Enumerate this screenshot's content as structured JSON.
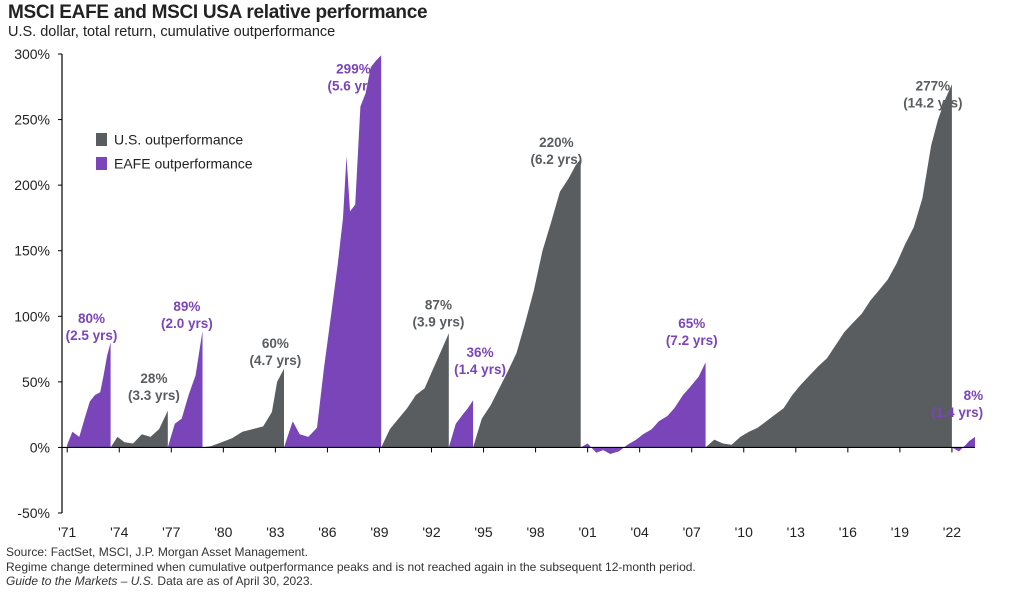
{
  "title": "MSCI EAFE and MSCI USA relative performance",
  "subtitle": "U.S. dollar, total return, cumulative outperformance",
  "colors": {
    "us": "#595d60",
    "eafe": "#7a45b8",
    "axis": "#000000"
  },
  "chart_data": {
    "type": "area",
    "ylim": [
      -50,
      300
    ],
    "yticks": [
      -50,
      0,
      50,
      100,
      150,
      200,
      250,
      300
    ],
    "ytick_labels": [
      "-50%",
      "0%",
      "50%",
      "100%",
      "150%",
      "200%",
      "250%",
      "300%"
    ],
    "xlim": [
      1970.7,
      2023.33
    ],
    "xticks": [
      1971,
      1974,
      1977,
      1980,
      1983,
      1986,
      1989,
      1992,
      1995,
      1998,
      2001,
      2004,
      2007,
      2010,
      2013,
      2016,
      2019,
      2022
    ],
    "xtick_labels": [
      "'71",
      "'74",
      "'77",
      "'80",
      "'83",
      "'86",
      "'89",
      "'92",
      "'95",
      "'98",
      "'01",
      "'04",
      "'07",
      "'10",
      "'13",
      "'16",
      "'19",
      "'22"
    ],
    "legend": {
      "placement": "top-left",
      "items": [
        {
          "label": "U.S. outperformance",
          "series": "us"
        },
        {
          "label": "EAFE  outperformance",
          "series": "eafe"
        }
      ]
    },
    "series": [
      {
        "name": "EAFE  outperformance",
        "color": "eafe",
        "x": [
          1971.0,
          1971.3,
          1971.7,
          1972.0,
          1972.3,
          1972.6,
          1972.9,
          1973.1,
          1973.3,
          1973.5
        ],
        "y": [
          2,
          12,
          8,
          22,
          35,
          40,
          42,
          55,
          70,
          80
        ]
      },
      {
        "name": "U.S. outperformance",
        "color": "us",
        "x": [
          1973.5,
          1973.9,
          1974.3,
          1974.8,
          1975.3,
          1975.8,
          1976.3,
          1976.8
        ],
        "y": [
          0,
          8,
          4,
          3,
          10,
          8,
          14,
          28
        ]
      },
      {
        "name": "EAFE  outperformance",
        "color": "eafe",
        "x": [
          1976.8,
          1977.2,
          1977.6,
          1978.0,
          1978.4,
          1978.8
        ],
        "y": [
          0,
          18,
          22,
          40,
          55,
          89
        ]
      },
      {
        "name": "U.S. outperformance",
        "color": "us",
        "x": [
          1978.8,
          1979.3,
          1979.9,
          1980.5,
          1981.1,
          1981.7,
          1982.3,
          1982.8,
          1983.1,
          1983.5
        ],
        "y": [
          0,
          1,
          4,
          7,
          12,
          14,
          16,
          27,
          50,
          60
        ]
      },
      {
        "name": "EAFE  outperformance",
        "color": "eafe",
        "x": [
          1983.5,
          1984.0,
          1984.4,
          1984.9,
          1985.4,
          1985.8,
          1986.2,
          1986.6,
          1986.9,
          1987.1,
          1987.3,
          1987.6,
          1987.9,
          1988.2,
          1988.5,
          1988.8,
          1989.1
        ],
        "y": [
          0,
          20,
          10,
          8,
          15,
          60,
          100,
          140,
          175,
          222,
          180,
          185,
          260,
          270,
          290,
          295,
          299
        ]
      },
      {
        "name": "U.S. outperformance",
        "color": "us",
        "x": [
          1989.1,
          1989.6,
          1990.1,
          1990.6,
          1991.1,
          1991.6,
          1992.1,
          1992.6,
          1993.0
        ],
        "y": [
          0,
          14,
          22,
          30,
          40,
          45,
          60,
          75,
          87
        ]
      },
      {
        "name": "EAFE  outperformance",
        "color": "eafe",
        "x": [
          1993.0,
          1993.4,
          1993.8,
          1994.1,
          1994.4
        ],
        "y": [
          0,
          18,
          25,
          30,
          36
        ]
      },
      {
        "name": "U.S. outperformance",
        "color": "us",
        "x": [
          1994.4,
          1994.9,
          1995.4,
          1995.9,
          1996.4,
          1996.9,
          1997.4,
          1997.9,
          1998.4,
          1998.9,
          1999.4,
          1999.9,
          2000.3,
          2000.6
        ],
        "y": [
          0,
          22,
          32,
          45,
          58,
          72,
          95,
          120,
          150,
          172,
          195,
          205,
          215,
          220
        ]
      },
      {
        "name": "EAFE  outperformance",
        "color": "eafe",
        "x": [
          2000.6,
          2001.0,
          2001.5,
          2001.9,
          2002.3,
          2002.8,
          2003.3,
          2003.8,
          2004.2,
          2004.7,
          2005.1,
          2005.6,
          2006.0,
          2006.5,
          2006.9,
          2007.4,
          2007.8
        ],
        "y": [
          0,
          3,
          -4,
          -2,
          -5,
          -3,
          2,
          6,
          10,
          14,
          20,
          24,
          30,
          40,
          46,
          54,
          65
        ]
      },
      {
        "name": "U.S. outperformance",
        "color": "us",
        "x": [
          2007.8,
          2008.3,
          2008.8,
          2009.3,
          2009.8,
          2010.3,
          2010.8,
          2011.3,
          2011.8,
          2012.3,
          2012.8,
          2013.3,
          2013.8,
          2014.3,
          2014.8,
          2015.3,
          2015.8,
          2016.3,
          2016.8,
          2017.3,
          2017.8,
          2018.3,
          2018.8,
          2019.3,
          2019.8,
          2020.3,
          2020.8,
          2021.2,
          2021.6,
          2022.0
        ],
        "y": [
          0,
          6,
          3,
          2,
          8,
          12,
          15,
          20,
          25,
          30,
          40,
          48,
          55,
          62,
          68,
          78,
          88,
          95,
          102,
          112,
          120,
          128,
          140,
          155,
          168,
          190,
          230,
          250,
          265,
          277
        ]
      },
      {
        "name": "EAFE  outperformance",
        "color": "eafe",
        "x": [
          2022.0,
          2022.4,
          2022.8,
          2023.0,
          2023.33
        ],
        "y": [
          0,
          -3,
          2,
          5,
          8
        ]
      }
    ],
    "annotations": [
      {
        "text": "80%",
        "text2": "(2.5 yrs)",
        "x": 1972.4,
        "y": 95,
        "color": "eafe"
      },
      {
        "text": "28%",
        "text2": "(3.3 yrs)",
        "x": 1976.0,
        "y": 49,
        "color": "us"
      },
      {
        "text": "89%",
        "text2": "(2.0 yrs)",
        "x": 1977.9,
        "y": 104,
        "color": "eafe"
      },
      {
        "text": "60%",
        "text2": "(4.7 yrs)",
        "x": 1983.0,
        "y": 76,
        "color": "us"
      },
      {
        "text": "299%",
        "text2": "(5.6 yrs)",
        "x": 1987.5,
        "y": 285,
        "color": "eafe"
      },
      {
        "text": "87%",
        "text2": "(3.9 yrs)",
        "x": 1992.4,
        "y": 105,
        "color": "us"
      },
      {
        "text": "36%",
        "text2": "(1.4 yrs)",
        "x": 1994.8,
        "y": 69,
        "color": "eafe"
      },
      {
        "text": "220%",
        "text2": "(6.2 yrs)",
        "x": 1999.2,
        "y": 229,
        "color": "us"
      },
      {
        "text": "65%",
        "text2": "(7.2 yrs)",
        "x": 2007.0,
        "y": 91,
        "color": "eafe"
      },
      {
        "text": "277%",
        "text2": "(14.2 yrs)",
        "x": 2020.9,
        "y": 272,
        "color": "us"
      },
      {
        "text": "8%",
        "text2": "(1.4 yrs)",
        "x": 2023.8,
        "y": 36,
        "color": "eafe",
        "anchor": "end"
      }
    ]
  },
  "footer": {
    "line1": "Source: FactSet, MSCI, J.P. Morgan Asset Management.",
    "line2": "Regime change determined when cumulative outperformance peaks and is not reached again in the subsequent  12-month period.",
    "line3_italic": "Guide to the Markets – U.S.",
    "line3_rest": " Data are as of April 30, 2023."
  }
}
